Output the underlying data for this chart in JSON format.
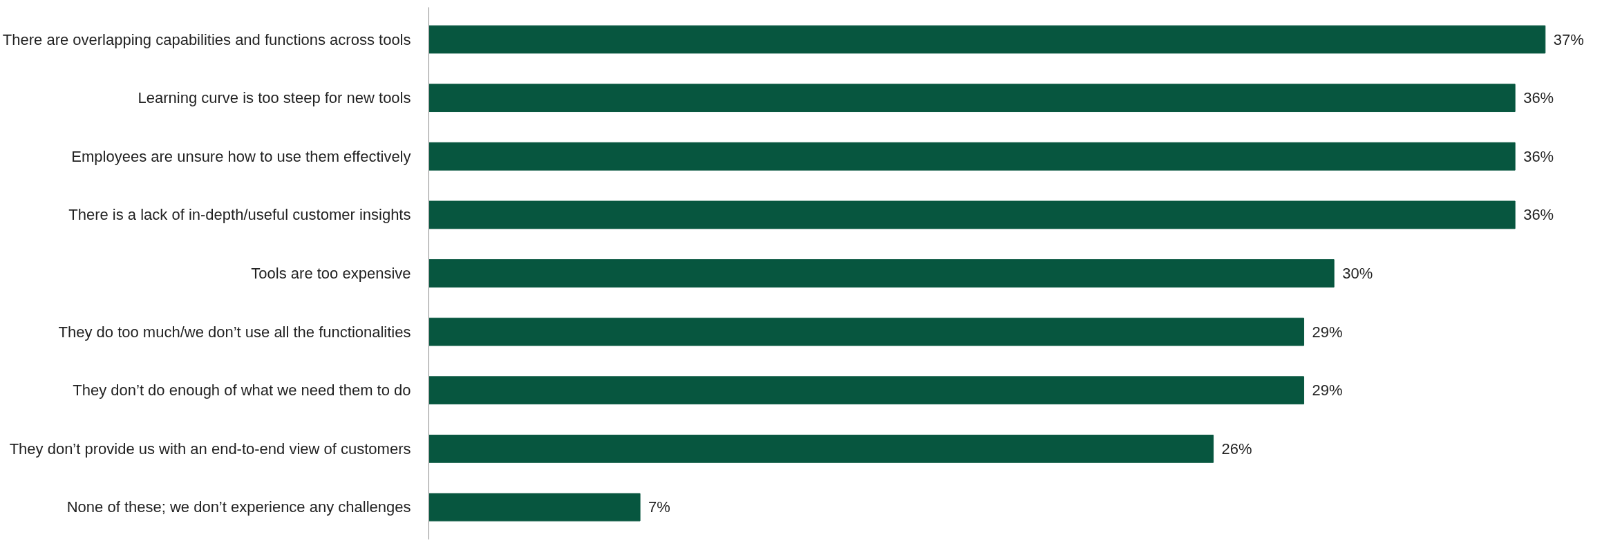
{
  "chart_data": {
    "type": "bar",
    "orientation": "horizontal",
    "categories": [
      "There are overlapping capabilities and functions across tools",
      "Learning curve is too steep for new tools",
      "Employees are unsure how to use them effectively",
      "There is a lack of in-depth/useful customer insights",
      "Tools are too expensive",
      "They do too much/we don’t use all the functionalities",
      "They don’t do enough of what we need them to do",
      "They don’t provide us with an end-to-end view of customers",
      "None of these; we don’t experience any challenges"
    ],
    "values": [
      37,
      36,
      36,
      36,
      30,
      29,
      29,
      26,
      7
    ],
    "value_labels": [
      "37%",
      "36%",
      "36%",
      "36%",
      "30%",
      "29%",
      "29%",
      "26%",
      "7%"
    ],
    "color": "#07563f",
    "grid": false
  }
}
